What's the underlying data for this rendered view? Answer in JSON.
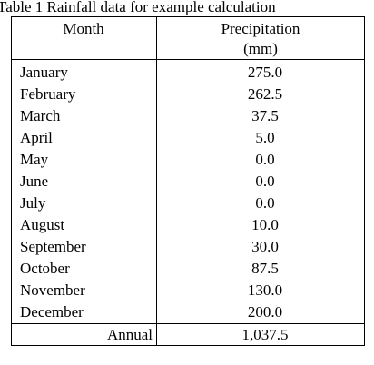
{
  "title": "Table 1 Rainfall data for example calculation",
  "table": {
    "header": [
      "Month",
      "Precipitation",
      "(mm)"
    ],
    "rows": [
      [
        "January",
        "275.0"
      ],
      [
        "February",
        "262.5"
      ],
      [
        "March",
        "37.5"
      ],
      [
        "April",
        "5.0"
      ],
      [
        "May",
        "0.0"
      ],
      [
        "June",
        "0.0"
      ],
      [
        "July",
        "0.0"
      ],
      [
        "August",
        "10.0"
      ],
      [
        "September",
        "30.0"
      ],
      [
        "October",
        "87.5"
      ],
      [
        "November",
        "130.0"
      ],
      [
        "December",
        "200.0"
      ]
    ],
    "footer": [
      "Annual",
      "1,037.5"
    ]
  }
}
